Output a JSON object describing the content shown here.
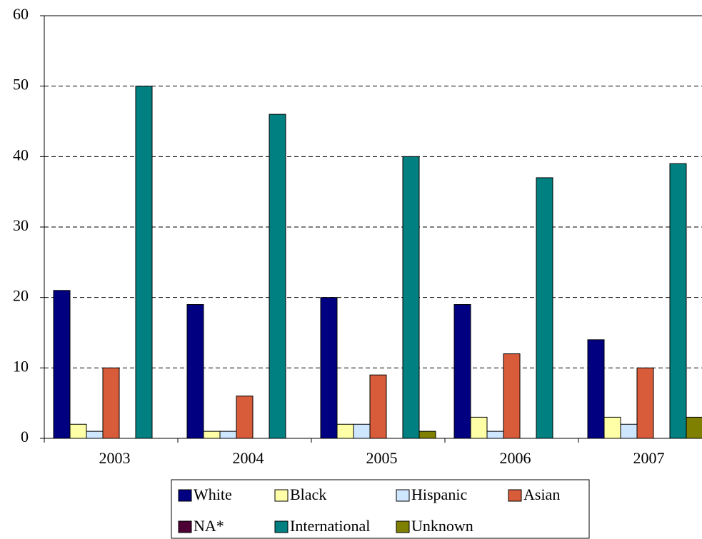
{
  "chart_data": {
    "type": "bar",
    "categories": [
      "2003",
      "2004",
      "2005",
      "2006",
      "2007"
    ],
    "series": [
      {
        "name": "White",
        "color": "#000080",
        "values": [
          21,
          19,
          20,
          19,
          14
        ]
      },
      {
        "name": "Black",
        "color": "#ffffa8",
        "values": [
          2,
          1,
          2,
          3,
          3
        ]
      },
      {
        "name": "Hispanic",
        "color": "#cfe6ff",
        "values": [
          1,
          1,
          2,
          1,
          2
        ]
      },
      {
        "name": "Asian",
        "color": "#d95c3a",
        "values": [
          10,
          6,
          9,
          12,
          10
        ]
      },
      {
        "name": "NA*",
        "color": "#4d0033",
        "values": [
          0,
          0,
          0,
          0,
          0
        ]
      },
      {
        "name": "International",
        "color": "#008080",
        "values": [
          50,
          46,
          40,
          37,
          39
        ]
      },
      {
        "name": "Unknown",
        "color": "#808000",
        "values": [
          0,
          0,
          1,
          0,
          3
        ]
      }
    ],
    "ylim": [
      0,
      60
    ],
    "yticks": [
      0,
      10,
      20,
      30,
      40,
      50,
      60
    ],
    "grid": true,
    "legend": "bottom"
  }
}
